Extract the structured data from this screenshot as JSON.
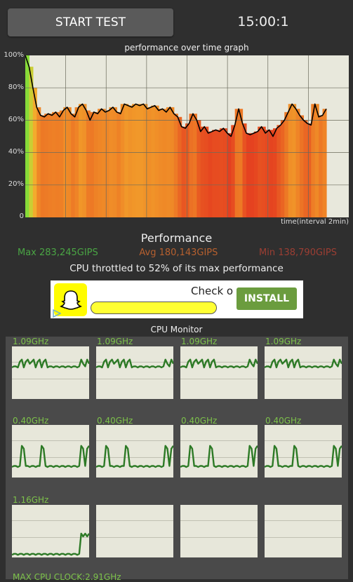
{
  "toolbar": {
    "start_label": "START TEST",
    "timer": "15:00:1"
  },
  "graph": {
    "title": "performance over time graph",
    "y_ticks": [
      "100%",
      "80%",
      "60%",
      "40%",
      "20%",
      "0"
    ],
    "x_label": "time(interval 2min)"
  },
  "performance": {
    "title": "Performance",
    "max": "Max 283,245GIPS",
    "avg": "Avg 180,143GIPS",
    "min": "Min 138,790GIPS",
    "throttle": "CPU throttled to 52% of its max performance"
  },
  "ad": {
    "text": "Check o",
    "install_label": "INSTALL"
  },
  "cpu_monitor": {
    "title": "CPU Monitor",
    "cores": [
      "1.09GHz",
      "1.09GHz",
      "1.09GHz",
      "1.09GHz",
      "0.40GHz",
      "0.40GHz",
      "0.40GHz",
      "0.40GHz",
      "1.16GHz"
    ],
    "max_clock": "MAX CPU CLOCK:2.91GHz"
  },
  "chart_data": {
    "type": "area",
    "title": "performance over time graph",
    "xlabel": "time(interval 2min)",
    "ylabel": "",
    "ylim": [
      0,
      100
    ],
    "y_ticks": [
      0,
      20,
      40,
      60,
      80,
      100
    ],
    "series": [
      {
        "values": [
          100,
          93,
          80,
          68,
          63,
          62,
          64,
          63,
          65,
          62,
          66,
          68,
          64,
          62,
          68,
          70,
          66,
          60,
          65,
          64,
          67,
          65,
          66,
          68,
          65,
          64,
          70,
          69,
          68,
          70,
          69,
          70,
          67,
          68,
          69,
          66,
          67,
          65,
          68,
          64,
          62,
          56,
          55,
          58,
          64,
          60,
          53,
          56,
          52,
          53,
          54,
          53,
          55,
          52,
          50,
          57,
          67,
          58,
          52,
          51,
          52,
          53,
          56,
          52,
          54,
          50,
          55,
          57,
          60,
          65,
          70,
          67,
          63,
          60,
          58,
          57,
          70,
          62,
          63,
          67
        ]
      }
    ]
  },
  "colors": {
    "high": "#6fe03a",
    "mid": "#f6c531",
    "low": "#e43a1f",
    "line": "#000000",
    "core_line": "#2d7a26",
    "label": "#7dc24b"
  }
}
